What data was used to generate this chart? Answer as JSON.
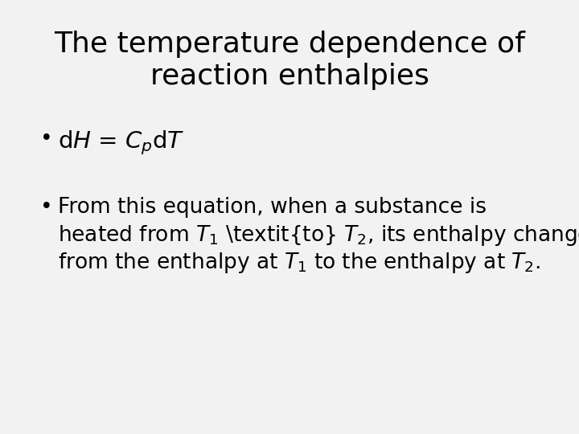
{
  "background_color": "#f2f2f2",
  "title_line1": "The temperature dependence of",
  "title_line2": "reaction enthalpies",
  "title_fontsize": 26,
  "title_color": "#000000",
  "body_fontsize": 19,
  "formula_fontsize": 19
}
